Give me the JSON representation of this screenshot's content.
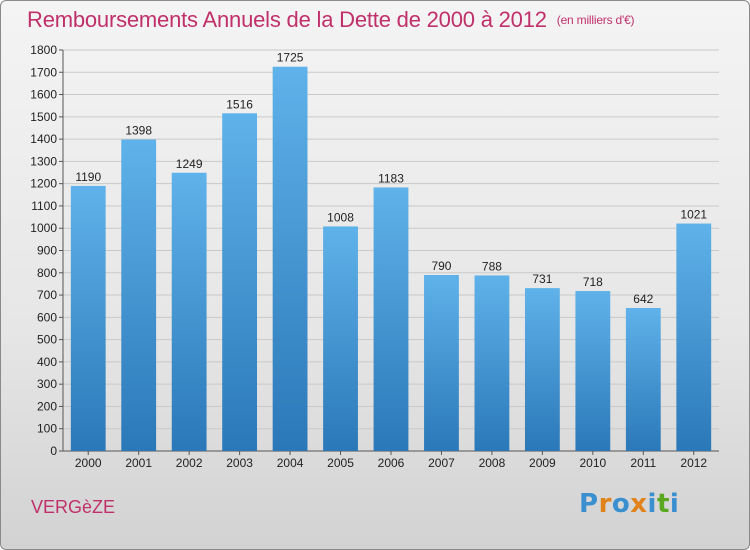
{
  "header": {
    "title": "Remboursements Annuels de la Dette de 2000 à 2012",
    "unit": "(en milliers d'€)"
  },
  "footer": {
    "commune": "VERGèZE",
    "logo_text": "Proxiti"
  },
  "colors": {
    "title": "#c0306a",
    "bar_top": "#5fb2ea",
    "bar_bottom": "#2b78b8",
    "logo_letters": [
      "#3a8fd0",
      "#e0831b",
      "#3a8fd0",
      "#e0831b",
      "#3a8fd0",
      "#5aa820",
      "#3a8fd0"
    ]
  },
  "chart_data": {
    "type": "bar",
    "title": "Remboursements Annuels de la Dette de 2000 à 2012",
    "unit": "(en milliers d'€)",
    "xlabel": "",
    "ylabel": "",
    "categories": [
      "2000",
      "2001",
      "2002",
      "2003",
      "2004",
      "2005",
      "2006",
      "2007",
      "2008",
      "2009",
      "2010",
      "2011",
      "2012"
    ],
    "values": [
      1190,
      1398,
      1249,
      1516,
      1725,
      1008,
      1183,
      790,
      788,
      731,
      718,
      642,
      1021
    ],
    "ylim": [
      0,
      1800
    ],
    "yticks": [
      0,
      100,
      200,
      300,
      400,
      500,
      600,
      700,
      800,
      900,
      1000,
      1100,
      1200,
      1300,
      1400,
      1500,
      1600,
      1700,
      1800
    ],
    "grid": true,
    "legend": "none"
  }
}
